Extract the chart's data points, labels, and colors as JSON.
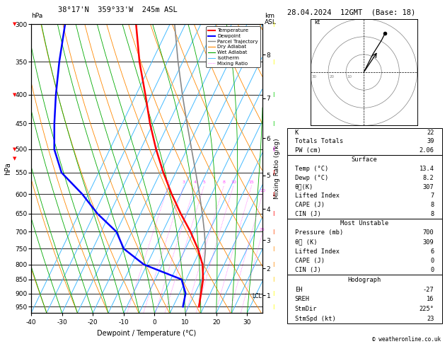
{
  "title_left": "38°17'N  359°33'W  245m ASL",
  "title_right": "28.04.2024  12GMT  (Base: 18)",
  "xlabel": "Dewpoint / Temperature (°C)",
  "ylabel_left": "hPa",
  "ylabel_mixing": "Mixing Ratio (g/kg)",
  "pressure_ticks": [
    300,
    350,
    400,
    450,
    500,
    550,
    600,
    650,
    700,
    750,
    800,
    850,
    900,
    950
  ],
  "temp_range": [
    -40,
    35
  ],
  "temp_ticks": [
    -40,
    -30,
    -20,
    -10,
    0,
    10,
    20,
    30
  ],
  "background": "#ffffff",
  "plot_bg": "#ffffff",
  "temp_profile": {
    "temps": [
      13.4,
      12.0,
      10.5,
      8.0,
      4.0,
      -1.0,
      -7.0,
      -13.0,
      -19.0,
      -25.0,
      -31.0,
      -37.0,
      -44.0,
      -51.0
    ],
    "pressures": [
      950,
      900,
      850,
      800,
      750,
      700,
      650,
      600,
      550,
      500,
      450,
      400,
      350,
      300
    ],
    "color": "#ff0000",
    "linewidth": 1.8
  },
  "dewpoint_profile": {
    "temps": [
      8.2,
      7.0,
      3.5,
      -11.0,
      -20.0,
      -25.0,
      -34.0,
      -42.0,
      -52.0,
      -58.0,
      -62.0,
      -66.0,
      -70.0,
      -74.0
    ],
    "pressures": [
      950,
      900,
      850,
      800,
      750,
      700,
      650,
      600,
      550,
      500,
      450,
      400,
      350,
      300
    ],
    "color": "#0000ff",
    "linewidth": 1.8
  },
  "parcel_trajectory": {
    "temps": [
      13.4,
      11.8,
      10.2,
      8.5,
      6.5,
      3.5,
      0.0,
      -4.0,
      -8.5,
      -13.5,
      -19.0,
      -25.0,
      -31.5,
      -38.5
    ],
    "pressures": [
      950,
      900,
      850,
      800,
      750,
      700,
      650,
      600,
      550,
      500,
      450,
      400,
      350,
      300
    ],
    "color": "#888888",
    "linewidth": 1.2
  },
  "lcl_pressure": 910,
  "lcl_label": "LCL",
  "isotherm_temps": [
    -40,
    -35,
    -30,
    -25,
    -20,
    -15,
    -10,
    -5,
    0,
    5,
    10,
    15,
    20,
    25,
    30,
    35
  ],
  "isotherm_color": "#44bbff",
  "dry_adiabat_color": "#ff8800",
  "wet_adiabat_color": "#00aa00",
  "mixing_ratio_color": "#ff44ff",
  "mixing_ratio_values": [
    2,
    3,
    4,
    5,
    8,
    10,
    15,
    20,
    25
  ],
  "km_ticks": [
    1,
    2,
    3,
    4,
    5,
    6,
    7,
    8
  ],
  "km_pressures": [
    907,
    813,
    724,
    638,
    556,
    478,
    406,
    340
  ],
  "stats": {
    "K": 22,
    "TotTot": 39,
    "PW_cm": "2.06",
    "surf_temp": "13.4",
    "surf_dewp": "8.2",
    "surf_theta_e": 307,
    "surf_lifted": 7,
    "surf_cape": 8,
    "surf_cin": 8,
    "mu_pressure": 700,
    "mu_theta_e": 309,
    "mu_lifted": 6,
    "mu_cape": 0,
    "mu_cin": 0,
    "EH": -27,
    "SREH": 16,
    "StmDir": "225°",
    "StmSpd": 23
  },
  "copyright": "© weatheronline.co.uk",
  "wind_barb_colors": [
    "#ffff00",
    "#ffff00",
    "#00cc00",
    "#00cc00",
    "#ff00ff",
    "#ff0000",
    "#ff0000",
    "#ff0000",
    "#ff4400",
    "#ff8800",
    "#ff8800",
    "#ffcc00",
    "#ffff00",
    "#ffff00"
  ],
  "wind_barb_shapes": [
    "barb",
    "barb",
    "barb",
    "barb",
    "barb",
    "barb",
    "barb",
    "barb",
    "barb",
    "dot",
    "dot",
    "dot",
    "dot",
    "dot"
  ]
}
